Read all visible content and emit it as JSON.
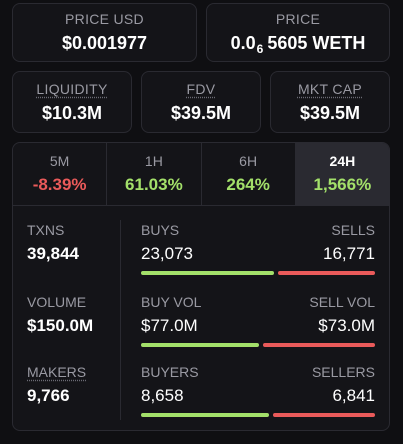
{
  "price_usd": {
    "label": "PRICE USD",
    "value": "$0.001977"
  },
  "price": {
    "label": "PRICE",
    "value_prefix": "0.0",
    "value_sub": "6",
    "value_rest": "5605 WETH"
  },
  "liquidity": {
    "label": "LIQUIDITY",
    "value": "$10.3M"
  },
  "fdv": {
    "label": "FDV",
    "value": "$39.5M"
  },
  "mkt_cap": {
    "label": "MKT CAP",
    "value": "$39.5M"
  },
  "tabs": [
    {
      "label": "5M",
      "value": "-8.39%",
      "color": "#ea5a5a"
    },
    {
      "label": "1H",
      "value": "61.03%",
      "color": "#a3e06a"
    },
    {
      "label": "6H",
      "value": "264%",
      "color": "#a3e06a"
    },
    {
      "label": "24H",
      "value": "1,566%",
      "color": "#a3e06a",
      "active": true
    }
  ],
  "txns": {
    "label": "TXNS",
    "value": "39,844"
  },
  "volume": {
    "label": "VOLUME",
    "value": "$150.0M"
  },
  "makers": {
    "label": "MAKERS",
    "value": "9,766"
  },
  "buys_sells": {
    "left_label": "BUYS",
    "right_label": "SELLS",
    "left_value": "23,073",
    "right_value": "16,771",
    "buy_fraction": 0.5791
  },
  "vol_split": {
    "left_label": "BUY VOL",
    "right_label": "SELL VOL",
    "left_value": "$77.0M",
    "right_value": "$73.0M",
    "buy_fraction": 0.5133
  },
  "buyers_sellers": {
    "left_label": "BUYERS",
    "right_label": "SELLERS",
    "left_value": "8,658",
    "right_value": "6,841",
    "buy_fraction": 0.5586
  },
  "colors": {
    "positive": "#a3e06a",
    "negative": "#ea5a5a",
    "background": "#0f0f12",
    "card": "#141418",
    "border": "#2a2a31"
  }
}
